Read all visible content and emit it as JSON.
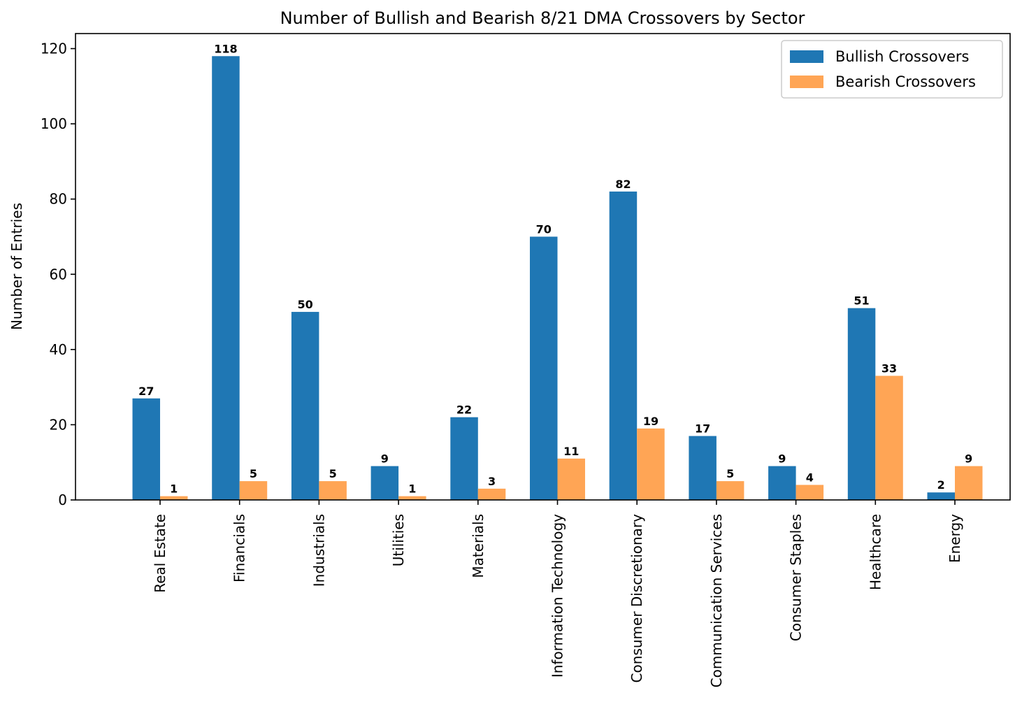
{
  "chart_data": {
    "type": "bar",
    "title": "Number of Bullish and Bearish 8/21 DMA Crossovers by Sector",
    "xlabel": "",
    "ylabel": "Number of Entries",
    "ylim": [
      0,
      124
    ],
    "yticks": [
      0,
      20,
      40,
      60,
      80,
      100,
      120
    ],
    "categories": [
      "Real Estate",
      "Financials",
      "Industrials",
      "Utilities",
      "Materials",
      "Information Technology",
      "Consumer Discretionary",
      "Communication Services",
      "Consumer Staples",
      "Healthcare",
      "Energy"
    ],
    "series": [
      {
        "name": "Bullish Crossovers",
        "color": "#1f77b4",
        "values": [
          27,
          118,
          50,
          9,
          22,
          70,
          82,
          17,
          9,
          51,
          2
        ]
      },
      {
        "name": "Bearish Crossovers",
        "color": "#ffa555",
        "values": [
          1,
          5,
          5,
          1,
          3,
          11,
          19,
          5,
          4,
          33,
          9
        ]
      }
    ],
    "legend": "top-right",
    "grid": false
  }
}
